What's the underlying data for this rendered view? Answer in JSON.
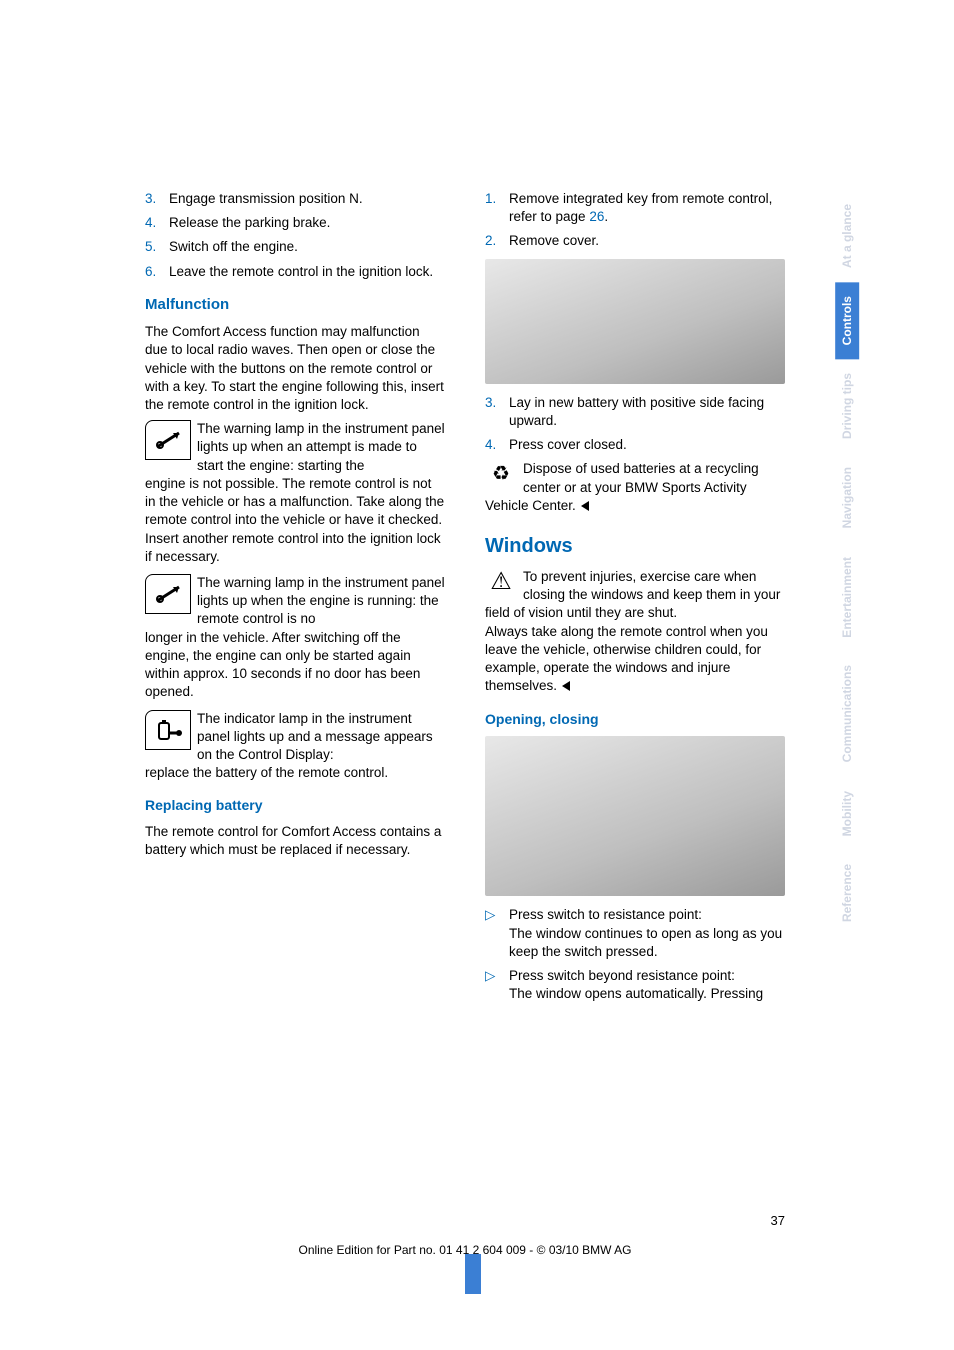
{
  "left": {
    "ol1": [
      {
        "n": "3.",
        "t": "Engage transmission position N."
      },
      {
        "n": "4.",
        "t": "Release the parking brake."
      },
      {
        "n": "5.",
        "t": "Switch off the engine."
      },
      {
        "n": "6.",
        "t": "Leave the remote control in the ignition lock."
      }
    ],
    "malf_h": "Malfunction",
    "malf_p": "The Comfort Access function may malfunction due to local radio waves. Then open or close the vehicle with the buttons on the remote control or with a key. To start the engine following this, insert the remote control in the ignition lock.",
    "warn1_lead": "The warning lamp in the instrument panel lights up when an attempt is made to start the engine: starting the",
    "warn1_rest": "engine is not possible. The remote control is not in the vehicle or has a malfunction. Take along the remote control into the vehicle or have it checked. Insert another remote control into the ignition lock if necessary.",
    "warn2_lead": "The warning lamp in the instrument panel lights up when the engine is running: the remote control is no",
    "warn2_rest": "longer in the vehicle. After switching off the engine, the engine can only be started again within approx. 10 seconds if no door has been opened.",
    "warn3_lead": "The indicator lamp in the instrument panel lights up and a message appears on the Control Display:",
    "warn3_rest": "replace the battery of the remote control.",
    "repl_h": "Replacing battery",
    "repl_p": "The remote control for Comfort Access contains a battery which must be replaced if necessary."
  },
  "right": {
    "ol1": [
      {
        "n": "1.",
        "t_pre": "Remove integrated key from remote control, refer to page ",
        "link": "26",
        "t_post": "."
      },
      {
        "n": "2.",
        "t": "Remove cover."
      }
    ],
    "ol2": [
      {
        "n": "3.",
        "t": "Lay in new battery with positive side facing upward."
      },
      {
        "n": "4.",
        "t": "Press cover closed."
      }
    ],
    "dispose": "Dispose of used batteries at a recycling center or at your BMW Sports Activity Vehicle Center.",
    "win_h": "Windows",
    "win_p": "To prevent injuries, exercise care when closing the windows and keep them in your field of vision until they are shut.",
    "win_p2": "Always take along the remote control when you leave the vehicle, otherwise children could, for example, operate the windows and injure themselves.",
    "open_h": "Opening, closing",
    "b1a": "Press switch to resistance point:",
    "b1b": "The window continues to open as long as you keep the switch pressed.",
    "b2a": "Press switch beyond resistance point:",
    "b2b": "The window opens automatically. Pressing"
  },
  "tabs": [
    "At a glance",
    "Controls",
    "Driving tips",
    "Navigation",
    "Entertainment",
    "Communications",
    "Mobility",
    "Reference"
  ],
  "active_tab": "Controls",
  "page_num": "37",
  "footer": "Online Edition for Part no. 01 41 2 604 009 - © 03/10 BMW AG",
  "colors": {
    "accent": "#0068b3",
    "tab_active_bg": "#3b7fd4",
    "tab_gray": "#d0d6e2"
  }
}
